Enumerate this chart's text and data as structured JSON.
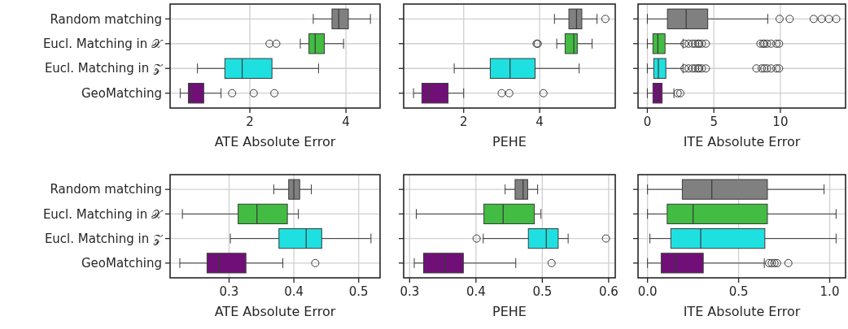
{
  "chart_data": [
    {
      "type": "box",
      "orientation": "horizontal",
      "xlabel": "ATE Absolute Error",
      "categories": [
        "Random matching",
        "Eucl. Matching in 𝒳",
        "Eucl. Matching in 𝒵",
        "GeoMatching"
      ],
      "colors": [
        "#808080",
        "#42bc42",
        "#1fe0e0",
        "#700f78"
      ],
      "xlim": [
        0.34,
        4.71
      ],
      "xticks": [
        2,
        4
      ],
      "grid": true,
      "boxes": [
        {
          "low": 3.32,
          "q1": 3.71,
          "median": 3.85,
          "q3": 4.05,
          "high": 4.51
        },
        {
          "low": 3.05,
          "q1": 3.23,
          "median": 3.36,
          "q3": 3.55,
          "high": 3.95,
          "outliers": [
            2.41,
            2.55
          ]
        },
        {
          "low": 0.91,
          "q1": 1.48,
          "median": 1.84,
          "q3": 2.46,
          "high": 3.43
        },
        {
          "low": 0.55,
          "q1": 0.72,
          "median": 0.79,
          "q3": 1.04,
          "high": 1.4,
          "outliers": [
            1.63,
            2.08,
            2.51
          ]
        }
      ]
    },
    {
      "type": "box",
      "orientation": "horizontal",
      "xlabel": "PEHE",
      "categories": [
        null,
        null,
        null,
        null
      ],
      "colors": [
        "#808080",
        "#42bc42",
        "#1fe0e0",
        "#700f78"
      ],
      "xlim": [
        0.42,
        5.99
      ],
      "xticks": [
        2,
        4
      ],
      "grid": true,
      "tick_labels": "x",
      "boxes": [
        {
          "low": 4.39,
          "q1": 4.77,
          "median": 4.97,
          "q3": 5.11,
          "high": 5.51,
          "outliers": [
            5.73
          ]
        },
        {
          "low": 4.45,
          "q1": 4.67,
          "median": 4.9,
          "q3": 4.99,
          "high": 5.38,
          "outliers": [
            3.92,
            3.95
          ]
        },
        {
          "low": 1.75,
          "q1": 2.7,
          "median": 3.22,
          "q3": 3.88,
          "high": 5.04
        },
        {
          "low": 0.68,
          "q1": 0.9,
          "median": 1.08,
          "q3": 1.59,
          "high": 2.0,
          "outliers": [
            3.0,
            3.2,
            4.1
          ]
        }
      ]
    },
    {
      "type": "box",
      "orientation": "horizontal",
      "xlabel": "ITE Absolute Error",
      "categories": [
        null,
        null,
        null,
        null
      ],
      "colors": [
        "#808080",
        "#42bc42",
        "#1fe0e0",
        "#700f78"
      ],
      "xlim": [
        -0.7,
        14.9
      ],
      "xticks": [
        0,
        5,
        10
      ],
      "grid": true,
      "tick_labels": "x",
      "boxes": [
        {
          "low": 0,
          "q1": 1.51,
          "median": 2.92,
          "q3": 4.54,
          "high": 9.05,
          "outliers": [
            9.94,
            10.7,
            12.5,
            13.1,
            13.65,
            14.2
          ]
        },
        {
          "low": 0,
          "q1": 0.42,
          "median": 0.79,
          "q3": 1.33,
          "high": 2.68,
          "outliers": [
            2.8,
            3.1,
            3.4,
            3.6,
            3.8,
            3.9,
            4.1,
            4.4,
            8.5,
            8.7,
            8.8,
            9.0,
            9.3,
            9.7,
            9.9
          ]
        },
        {
          "low": 0,
          "q1": 0.48,
          "median": 0.83,
          "q3": 1.39,
          "high": 2.68,
          "outliers": [
            2.8,
            3.1,
            3.4,
            3.6,
            3.8,
            3.9,
            4.1,
            4.4,
            8.2,
            8.6,
            8.8,
            9.0,
            9.3,
            9.7,
            9.9
          ]
        },
        {
          "low": 0,
          "q1": 0.42,
          "median": 0.79,
          "q3": 1.11,
          "high": 2.0,
          "outliers": [
            2.28,
            2.48
          ]
        }
      ]
    },
    {
      "type": "box",
      "orientation": "horizontal",
      "xlabel": "ATE Absolute Error",
      "categories": [
        "Random matching",
        "Eucl. Matching in 𝒳",
        "Eucl. Matching in 𝒵",
        "GeoMatching"
      ],
      "colors": [
        "#808080",
        "#42bc42",
        "#1fe0e0",
        "#700f78"
      ],
      "xlim": [
        0.209,
        0.533
      ],
      "xticks": [
        0.3,
        0.4,
        0.5
      ],
      "grid": true,
      "boxes": [
        {
          "low": 0.369,
          "q1": 0.392,
          "median": 0.4,
          "q3": 0.409,
          "high": 0.427
        },
        {
          "low": 0.228,
          "q1": 0.314,
          "median": 0.343,
          "q3": 0.39,
          "high": 0.407
        },
        {
          "low": 0.302,
          "q1": 0.377,
          "median": 0.419,
          "q3": 0.443,
          "high": 0.519
        },
        {
          "low": 0.224,
          "q1": 0.266,
          "median": 0.285,
          "q3": 0.326,
          "high": 0.383,
          "outliers": [
            0.433
          ]
        }
      ]
    },
    {
      "type": "box",
      "orientation": "horizontal",
      "xlabel": "PEHE",
      "categories": [
        null,
        null,
        null,
        null
      ],
      "colors": [
        "#808080",
        "#42bc42",
        "#1fe0e0",
        "#700f78"
      ],
      "xlim": [
        0.291,
        0.61
      ],
      "xticks": [
        0.3,
        0.4,
        0.5,
        0.6
      ],
      "grid": true,
      "tick_labels": "x",
      "boxes": [
        {
          "low": 0.444,
          "q1": 0.459,
          "median": 0.471,
          "q3": 0.478,
          "high": 0.493
        },
        {
          "low": 0.31,
          "q1": 0.412,
          "median": 0.441,
          "q3": 0.488,
          "high": 0.498
        },
        {
          "low": 0.411,
          "q1": 0.479,
          "median": 0.506,
          "q3": 0.524,
          "high": 0.539,
          "outliers": [
            0.401,
            0.596
          ]
        },
        {
          "low": 0.307,
          "q1": 0.321,
          "median": 0.353,
          "q3": 0.381,
          "high": 0.46,
          "outliers": [
            0.514
          ]
        }
      ]
    },
    {
      "type": "box",
      "orientation": "horizontal",
      "xlabel": "ITE Absolute Error",
      "categories": [
        null,
        null,
        null,
        null
      ],
      "colors": [
        "#808080",
        "#42bc42",
        "#1fe0e0",
        "#700f78"
      ],
      "xlim": [
        -0.052,
        1.087
      ],
      "xticks": [
        {
          "value": 0,
          "label": "0.0"
        },
        {
          "value": 0.5,
          "label": "0.5"
        },
        {
          "value": 1,
          "label": "1.0"
        }
      ],
      "grid": true,
      "tick_labels": "x",
      "boxes": [
        {
          "low": 0,
          "q1": 0.191,
          "median": 0.353,
          "q3": 0.658,
          "high": 0.969
        },
        {
          "low": 0,
          "q1": 0.108,
          "median": 0.25,
          "q3": 0.658,
          "high": 1.035
        },
        {
          "low": 0.013,
          "q1": 0.128,
          "median": 0.292,
          "q3": 0.644,
          "high": 1.035
        },
        {
          "low": 0,
          "q1": 0.075,
          "median": 0.155,
          "q3": 0.306,
          "high": 0.641,
          "outliers": [
            0.667,
            0.682,
            0.697,
            0.711,
            0.773
          ]
        }
      ]
    }
  ]
}
